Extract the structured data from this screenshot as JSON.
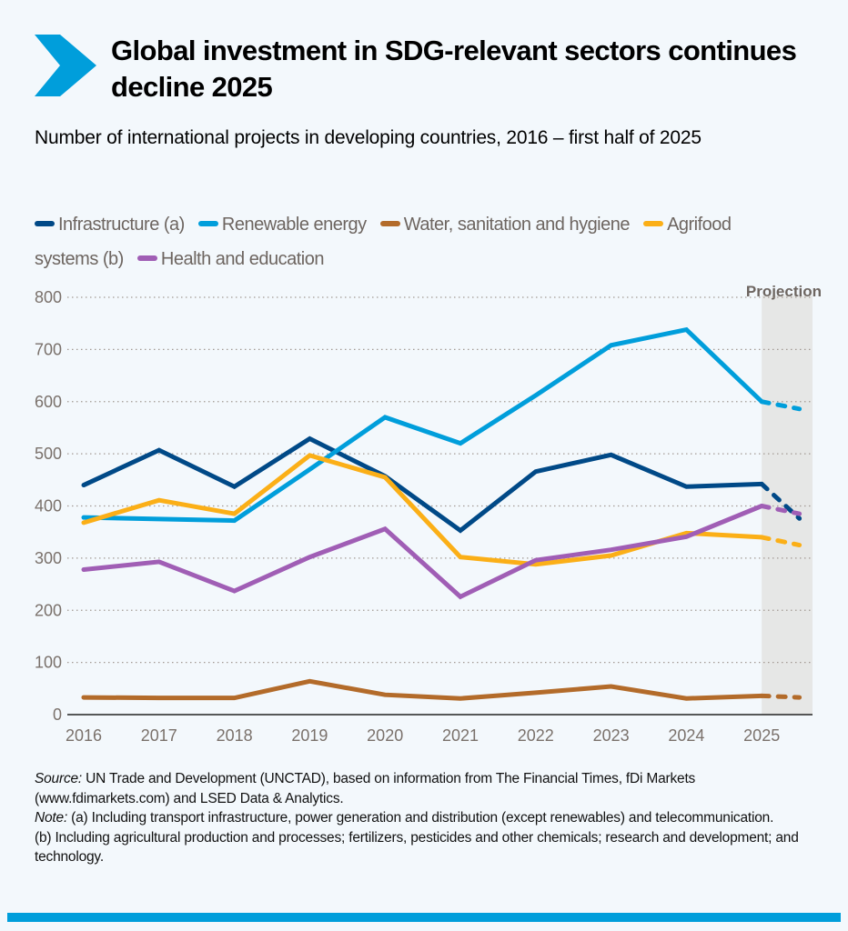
{
  "header": {
    "title": "Global investment in SDG-relevant sectors continues decline 2025",
    "subtitle": "Number of international projects in developing countries, 2016 – first half of 2025",
    "accent_color": "#009edb"
  },
  "chart_data": {
    "type": "line",
    "title": "Global investment in SDG-relevant sectors continues decline 2025",
    "subtitle": "Number of international projects in developing countries, 2016 – first half of 2025",
    "x": [
      "2016",
      "2017",
      "2018",
      "2019",
      "2020",
      "2021",
      "2022",
      "2023",
      "2024",
      "2025"
    ],
    "ylim": [
      0,
      800
    ],
    "yticks": [
      0,
      100,
      200,
      300,
      400,
      500,
      600,
      700,
      800
    ],
    "grid": true,
    "legend": "top",
    "projection_label": "Projection",
    "projection_region": [
      "2025",
      "end"
    ],
    "series": [
      {
        "name": "Infrastructure (a)",
        "color": "#004987",
        "values": [
          440,
          507,
          437,
          529,
          457,
          353,
          466,
          498,
          437,
          442
        ],
        "projection": 376
      },
      {
        "name": "Renewable energy",
        "color": "#009edb",
        "values": [
          378,
          375,
          372,
          470,
          570,
          520,
          612,
          708,
          738,
          600
        ],
        "projection": 586
      },
      {
        "name": "Water, sanitation and hygiene",
        "color": "#b36b2a",
        "values": [
          33,
          32,
          32,
          64,
          38,
          31,
          42,
          54,
          31,
          36
        ],
        "projection": 33
      },
      {
        "name": "Agrifood systems (b)",
        "color": "#fbaf17",
        "values": [
          368,
          411,
          385,
          497,
          455,
          302,
          288,
          305,
          348,
          340
        ],
        "projection": 325
      },
      {
        "name": "Health and education",
        "color": "#a05eb5",
        "values": [
          278,
          293,
          237,
          302,
          356,
          226,
          296,
          316,
          341,
          400
        ],
        "projection": 385
      }
    ]
  },
  "footer": {
    "source_label": "Source:",
    "source_text": " UN Trade and Development (UNCTAD), based on information from The Financial Times, fDi Markets (www.fdimarkets.com) and LSED Data & Analytics.",
    "note_label": "Note:",
    "note_a": " (a) Including transport infrastructure, power generation and distribution (except renewables) and telecommunication.",
    "note_b": "(b) Including agricultural production and processes; fertilizers, pesticides and other chemicals; research and development; and technology."
  }
}
